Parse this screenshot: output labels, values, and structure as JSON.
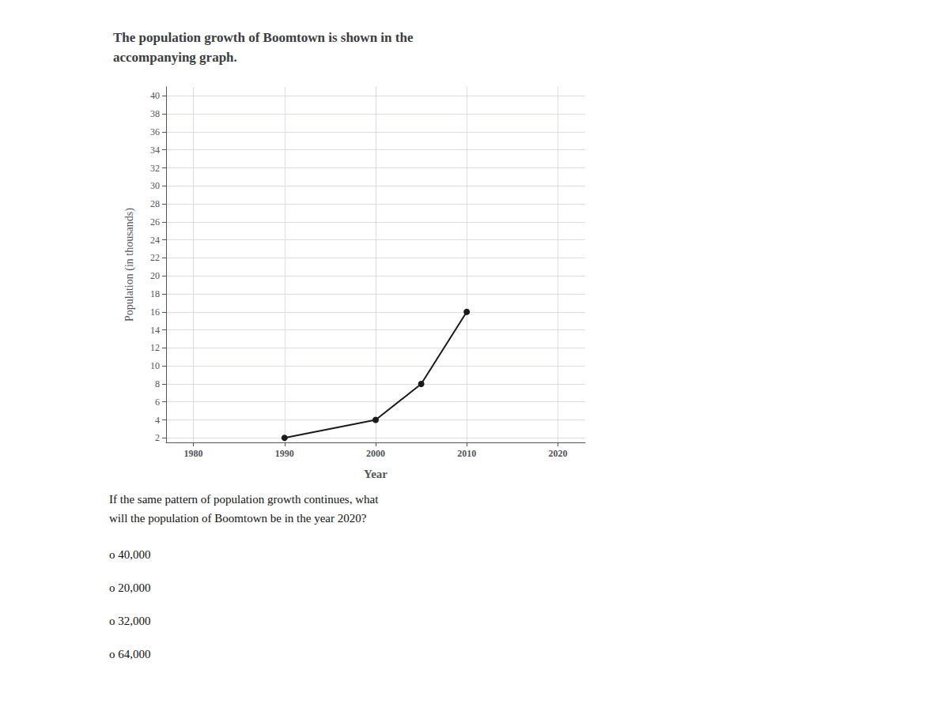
{
  "chart_data": {
    "type": "line",
    "title": "The population growth of Boomtown is shown in the\naccompanying graph.",
    "x": [
      1990,
      2000,
      2005,
      2010
    ],
    "values": [
      2,
      4,
      8,
      16
    ],
    "color": "#1a1a1a",
    "marker": "circle",
    "xlabel": "Year",
    "ylabel": "Population (in thousands)",
    "xlim": [
      1977,
      2023
    ],
    "ylim": [
      1.5,
      41
    ],
    "xticks": [
      1980,
      1990,
      2000,
      2010,
      2020
    ],
    "yticks": [
      2,
      4,
      6,
      8,
      10,
      12,
      14,
      16,
      18,
      20,
      22,
      24,
      26,
      28,
      30,
      32,
      34,
      36,
      38,
      40
    ],
    "grid": true,
    "annotations": [
      "If the same pattern of population growth continues, what\nwill the population of Boomtown be in the year 2020?",
      "o 40,000",
      "o 20,000",
      "o 32,000",
      "o 64,000"
    ]
  }
}
